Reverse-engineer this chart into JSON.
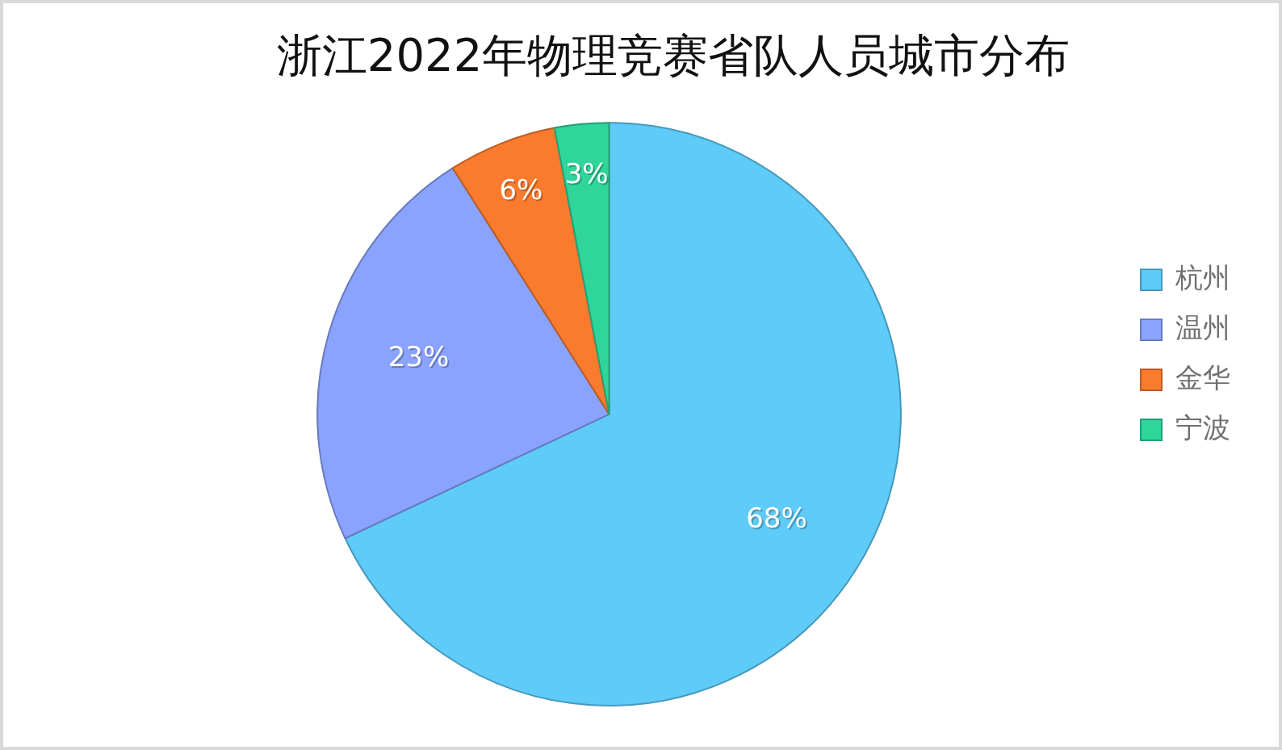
{
  "chart_data": {
    "type": "pie",
    "title": "浙江2022年物理竞赛省队人员城市分布",
    "categories": [
      "杭州",
      "温州",
      "金华",
      "宁波"
    ],
    "values": [
      68,
      23,
      6,
      3
    ],
    "colors": [
      "#5ecbf8",
      "#8aa3fe",
      "#fb7b2e",
      "#2fd59a"
    ],
    "value_labels": [
      "68%",
      "23%",
      "6%",
      "3%"
    ],
    "legend": "right"
  }
}
